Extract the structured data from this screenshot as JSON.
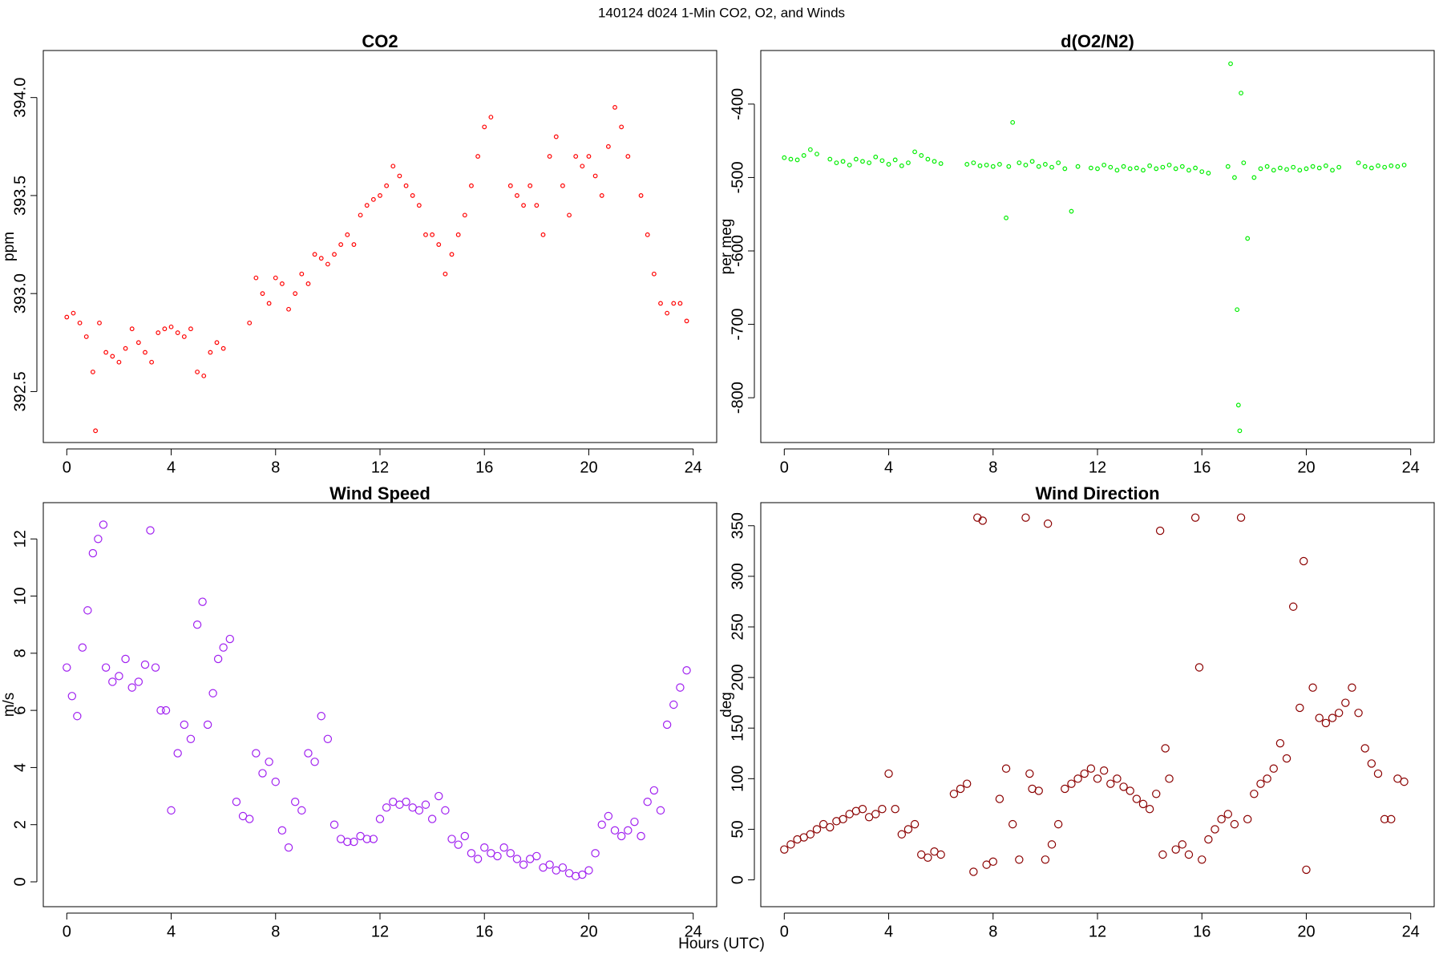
{
  "title": "140124   d024   1-Min CO2, O2, and Winds",
  "x_label": "Hours (UTC)",
  "chart_data": [
    {
      "type": "scatter",
      "title": "CO2",
      "y_label": "ppm",
      "color": "#ff0000",
      "xlim": [
        -0.9,
        24.9
      ],
      "xticks": [
        0,
        4,
        8,
        12,
        16,
        20,
        24
      ],
      "ylim": [
        392.24,
        394.24
      ],
      "yticks": [
        392.5,
        {
          "value": 393,
          "label": "393.0"
        },
        393.5,
        {
          "value": 394,
          "label": "394.0"
        }
      ],
      "x": [
        0,
        0.25,
        0.5,
        0.75,
        1.0,
        1.1,
        1.25,
        1.5,
        1.75,
        2.0,
        2.25,
        2.5,
        2.75,
        3.0,
        3.25,
        3.5,
        3.75,
        4.0,
        4.25,
        4.5,
        4.75,
        5.0,
        5.25,
        5.5,
        5.75,
        6.0,
        7.0,
        7.25,
        7.5,
        7.75,
        8.0,
        8.25,
        8.5,
        8.75,
        9.0,
        9.25,
        9.5,
        9.75,
        10.0,
        10.25,
        10.5,
        10.75,
        11.0,
        11.25,
        11.5,
        11.75,
        12.0,
        12.25,
        12.5,
        12.75,
        13.0,
        13.25,
        13.5,
        13.75,
        14.0,
        14.25,
        14.5,
        14.75,
        15.0,
        15.25,
        15.5,
        15.75,
        16.0,
        16.25,
        17.0,
        17.25,
        17.5,
        17.75,
        18.0,
        18.25,
        18.5,
        18.75,
        19.0,
        19.25,
        19.5,
        19.75,
        20.0,
        20.25,
        20.5,
        20.75,
        21.0,
        21.25,
        21.5,
        22.0,
        22.25,
        22.5,
        22.75,
        23.0,
        23.25,
        23.5,
        23.75
      ],
      "values": [
        392.88,
        392.9,
        392.85,
        392.78,
        392.6,
        392.3,
        392.85,
        392.7,
        392.68,
        392.65,
        392.72,
        392.82,
        392.75,
        392.7,
        392.65,
        392.8,
        392.82,
        392.83,
        392.8,
        392.78,
        392.82,
        392.6,
        392.58,
        392.7,
        392.75,
        392.72,
        392.85,
        393.08,
        393.0,
        392.95,
        393.08,
        393.05,
        392.92,
        393.0,
        393.1,
        393.05,
        393.2,
        393.18,
        393.15,
        393.2,
        393.25,
        393.3,
        393.25,
        393.4,
        393.45,
        393.48,
        393.5,
        393.55,
        393.65,
        393.6,
        393.55,
        393.5,
        393.45,
        393.3,
        393.3,
        393.25,
        393.1,
        393.2,
        393.3,
        393.4,
        393.55,
        393.7,
        393.85,
        393.9,
        393.55,
        393.5,
        393.45,
        393.55,
        393.45,
        393.3,
        393.7,
        393.8,
        393.55,
        393.4,
        393.7,
        393.65,
        393.7,
        393.6,
        393.5,
        393.75,
        393.95,
        393.85,
        393.7,
        393.5,
        393.3,
        393.1,
        392.95,
        392.9,
        392.95,
        392.95,
        392.86
      ]
    },
    {
      "type": "scatter",
      "title": "d(O2/N2)",
      "y_label": "per meg",
      "color": "#00ee00",
      "xlim": [
        -0.9,
        24.9
      ],
      "xticks": [
        0,
        4,
        8,
        12,
        16,
        20,
        24
      ],
      "ylim": [
        -861,
        -327
      ],
      "yticks": [
        -800,
        -700,
        -600,
        -500,
        -400
      ],
      "x": [
        0,
        0.25,
        0.5,
        0.75,
        1.0,
        1.25,
        1.75,
        2.0,
        2.25,
        2.5,
        2.75,
        3.0,
        3.25,
        3.5,
        3.75,
        4.0,
        4.25,
        4.5,
        4.75,
        5.0,
        5.25,
        5.5,
        5.75,
        6.0,
        7.0,
        7.25,
        7.5,
        7.75,
        8.0,
        8.25,
        8.5,
        8.6,
        8.75,
        9.0,
        9.25,
        9.5,
        9.75,
        10.0,
        10.25,
        10.5,
        10.75,
        11.0,
        11.25,
        11.75,
        12.0,
        12.25,
        12.5,
        12.75,
        13.0,
        13.25,
        13.5,
        13.75,
        14.0,
        14.25,
        14.5,
        14.75,
        15.0,
        15.25,
        15.5,
        15.75,
        16.0,
        16.25,
        17.0,
        17.1,
        17.25,
        17.35,
        17.4,
        17.45,
        17.5,
        17.6,
        17.75,
        18.0,
        18.25,
        18.5,
        18.75,
        19.0,
        19.25,
        19.5,
        19.75,
        20.0,
        20.25,
        20.5,
        20.75,
        21.0,
        21.25,
        22.0,
        22.25,
        22.5,
        22.75,
        23.0,
        23.25,
        23.5,
        23.75
      ],
      "values": [
        -473,
        -475,
        -476,
        -470,
        -462,
        -468,
        -475,
        -480,
        -478,
        -483,
        -475,
        -478,
        -480,
        -472,
        -477,
        -482,
        -476,
        -484,
        -480,
        -465,
        -470,
        -475,
        -478,
        -481,
        -482,
        -480,
        -484,
        -483,
        -485,
        -482,
        -555,
        -485,
        -425,
        -480,
        -483,
        -478,
        -485,
        -482,
        -486,
        -480,
        -488,
        -546,
        -485,
        -487,
        -488,
        -483,
        -486,
        -490,
        -485,
        -488,
        -487,
        -490,
        -484,
        -488,
        -486,
        -483,
        -488,
        -485,
        -490,
        -487,
        -492,
        -494,
        -485,
        -345,
        -500,
        -680,
        -810,
        -845,
        -385,
        -480,
        -583,
        -500,
        -488,
        -485,
        -490,
        -487,
        -489,
        -486,
        -490,
        -488,
        -485,
        -487,
        -484,
        -490,
        -486,
        -480,
        -485,
        -487,
        -484,
        -486,
        -484,
        -485,
        -483
      ]
    },
    {
      "type": "scatter",
      "title": "Wind Speed",
      "y_label": "m/s",
      "color": "#a020f0",
      "xlim": [
        -0.9,
        24.9
      ],
      "xticks": [
        0,
        4,
        8,
        12,
        16,
        20,
        24
      ],
      "ylim": [
        -0.87,
        13.27
      ],
      "yticks": [
        0,
        2,
        4,
        6,
        8,
        10,
        12
      ],
      "x": [
        0,
        0.2,
        0.4,
        0.6,
        0.8,
        1.0,
        1.2,
        1.4,
        1.5,
        1.75,
        2.0,
        2.25,
        2.5,
        2.75,
        3.0,
        3.2,
        3.4,
        3.6,
        3.8,
        4.0,
        4.25,
        4.5,
        4.75,
        5.0,
        5.2,
        5.4,
        5.6,
        5.8,
        6.0,
        6.25,
        6.5,
        6.75,
        7.0,
        7.25,
        7.5,
        7.75,
        8.0,
        8.25,
        8.5,
        8.75,
        9.0,
        9.25,
        9.5,
        9.75,
        10.0,
        10.25,
        10.5,
        10.75,
        11.0,
        11.25,
        11.5,
        11.75,
        12.0,
        12.25,
        12.5,
        12.75,
        13.0,
        13.25,
        13.5,
        13.75,
        14.0,
        14.25,
        14.5,
        14.75,
        15.0,
        15.25,
        15.5,
        15.75,
        16.0,
        16.25,
        16.5,
        16.75,
        17.0,
        17.25,
        17.5,
        17.75,
        18.0,
        18.25,
        18.5,
        18.75,
        19.0,
        19.25,
        19.5,
        19.75,
        20.0,
        20.25,
        20.5,
        20.75,
        21.0,
        21.25,
        21.5,
        21.75,
        22.0,
        22.25,
        22.5,
        22.75,
        23.0,
        23.25,
        23.5,
        23.75
      ],
      "values": [
        7.5,
        6.5,
        5.8,
        8.2,
        9.5,
        11.5,
        12.0,
        12.5,
        7.5,
        7.0,
        7.2,
        7.8,
        6.8,
        7.0,
        7.6,
        12.3,
        7.5,
        6.0,
        6.0,
        2.5,
        4.5,
        5.5,
        5.0,
        9.0,
        9.8,
        5.5,
        6.6,
        7.8,
        8.2,
        8.5,
        2.8,
        2.3,
        2.2,
        4.5,
        3.8,
        4.2,
        3.5,
        1.8,
        1.2,
        2.8,
        2.5,
        4.5,
        4.2,
        5.8,
        5.0,
        2.0,
        1.5,
        1.4,
        1.4,
        1.6,
        1.5,
        1.5,
        2.2,
        2.6,
        2.8,
        2.7,
        2.8,
        2.6,
        2.5,
        2.7,
        2.2,
        3.0,
        2.5,
        1.5,
        1.3,
        1.6,
        1.0,
        0.8,
        1.2,
        1.0,
        0.9,
        1.2,
        1.0,
        0.8,
        0.6,
        0.8,
        0.9,
        0.5,
        0.6,
        0.4,
        0.5,
        0.3,
        0.2,
        0.25,
        0.4,
        1.0,
        2.0,
        2.3,
        1.8,
        1.6,
        1.8,
        2.1,
        1.6,
        2.8,
        3.2,
        2.5,
        5.5,
        6.2,
        6.8,
        7.4
      ]
    },
    {
      "type": "scatter",
      "title": "Wind Direction",
      "y_label": "deg",
      "color": "#8b0000",
      "xlim": [
        -0.9,
        24.9
      ],
      "xticks": [
        0,
        4,
        8,
        12,
        16,
        20,
        24
      ],
      "ylim": [
        -26.5,
        372.8
      ],
      "yticks": [
        0,
        50,
        100,
        150,
        200,
        250,
        300,
        350
      ],
      "x": [
        0,
        0.25,
        0.5,
        0.75,
        1.0,
        1.25,
        1.5,
        1.75,
        2.0,
        2.25,
        2.5,
        2.75,
        3.0,
        3.25,
        3.5,
        3.75,
        4.0,
        4.25,
        4.5,
        4.75,
        5.0,
        5.25,
        5.5,
        5.75,
        6.0,
        6.5,
        6.75,
        7.0,
        7.25,
        7.4,
        7.6,
        7.75,
        8.0,
        8.25,
        8.5,
        8.75,
        9.0,
        9.25,
        9.4,
        9.5,
        9.75,
        10.0,
        10.1,
        10.25,
        10.5,
        10.75,
        11.0,
        11.25,
        11.5,
        11.75,
        12.0,
        12.25,
        12.5,
        12.75,
        13.0,
        13.25,
        13.5,
        13.75,
        14.0,
        14.25,
        14.4,
        14.5,
        14.6,
        14.75,
        15.0,
        15.25,
        15.5,
        15.75,
        15.9,
        16.0,
        16.25,
        16.5,
        16.75,
        17.0,
        17.25,
        17.5,
        17.75,
        18.0,
        18.25,
        18.5,
        18.75,
        19.0,
        19.25,
        19.5,
        19.75,
        19.9,
        20.0,
        20.25,
        20.5,
        20.75,
        21.0,
        21.25,
        21.5,
        21.75,
        22.0,
        22.25,
        22.5,
        22.75,
        23.0,
        23.25,
        23.5,
        23.75
      ],
      "values": [
        30,
        35,
        40,
        42,
        45,
        50,
        55,
        52,
        58,
        60,
        65,
        68,
        70,
        62,
        65,
        70,
        105,
        70,
        45,
        50,
        55,
        25,
        22,
        28,
        25,
        85,
        90,
        95,
        8,
        358,
        355,
        15,
        18,
        80,
        110,
        55,
        20,
        358,
        105,
        90,
        88,
        20,
        352,
        35,
        55,
        90,
        95,
        100,
        105,
        110,
        100,
        108,
        95,
        100,
        92,
        88,
        80,
        75,
        70,
        85,
        345,
        25,
        130,
        100,
        30,
        35,
        25,
        358,
        210,
        20,
        40,
        50,
        60,
        65,
        55,
        358,
        60,
        85,
        95,
        100,
        110,
        135,
        120,
        270,
        170,
        315,
        10,
        190,
        160,
        155,
        160,
        165,
        175,
        190,
        165,
        130,
        115,
        105,
        60,
        60,
        100,
        97
      ]
    }
  ]
}
